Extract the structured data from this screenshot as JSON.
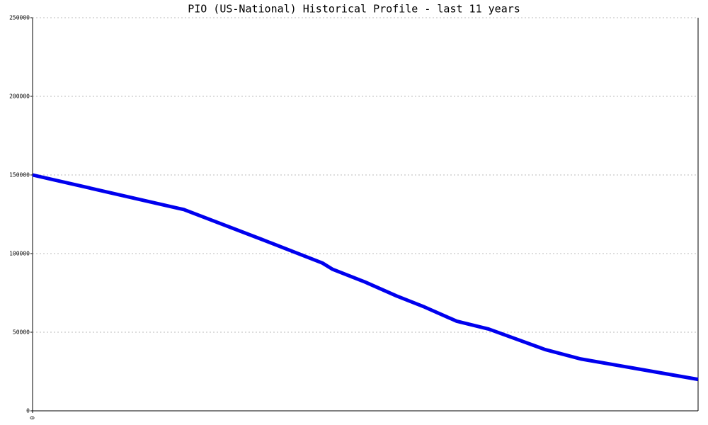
{
  "chart_data": {
    "type": "line",
    "title": "PIO (US-National) Historical Profile - last 11 years",
    "x": [
      0,
      2.5,
      3.79,
      4.79,
      4.96,
      5.49,
      6.02,
      6.48,
      7.01,
      7.54,
      8.47,
      9.06,
      11
    ],
    "series": [
      {
        "color": "#0000ee",
        "values": [
          150000,
          128000,
          109000,
          94000,
          90000,
          82000,
          73000,
          66000,
          57000,
          52000,
          39000,
          33000,
          20000
        ]
      }
    ],
    "xlim": [
      0,
      11
    ],
    "xticks": [
      0
    ],
    "ylim": [
      0,
      250000
    ],
    "yticks": [
      0,
      50000,
      100000,
      150000,
      200000,
      250000
    ],
    "grid": true
  }
}
